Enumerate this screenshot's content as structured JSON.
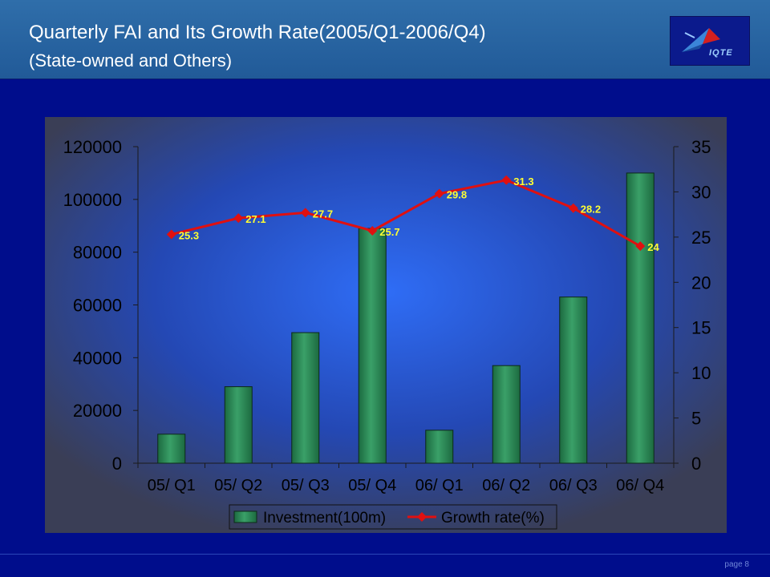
{
  "header": {
    "title": "Quarterly FAI and Its Growth Rate(2005/Q1-2006/Q4)",
    "subtitle": "(State-owned and Others)",
    "logo_text": "IQTE"
  },
  "footer": {
    "page_number": "page 8"
  },
  "colors": {
    "header_bg": "#2464a2",
    "page_bg": "#000d8c",
    "bar": "#2e8a58",
    "line": "#e01010",
    "data_label": "#ffff33"
  },
  "chart_data": {
    "type": "bar",
    "categories": [
      "05/ Q1",
      "05/ Q2",
      "05/ Q3",
      "05/ Q4",
      "06/ Q1",
      "06/ Q2",
      "06/ Q3",
      "06/ Q4"
    ],
    "series": [
      {
        "name": "Investment(100m)",
        "type": "bar",
        "axis": "left",
        "values": [
          11000,
          29000,
          49500,
          89000,
          12500,
          37000,
          63000,
          110000
        ]
      },
      {
        "name": "Growth rate(%)",
        "type": "line",
        "axis": "right",
        "values": [
          25.3,
          27.1,
          27.7,
          25.7,
          29.8,
          31.3,
          28.2,
          24
        ],
        "labels": [
          "25.3",
          "27.1",
          "27.7",
          "25.7",
          "29.8",
          "31.3",
          "28.2",
          "24"
        ]
      }
    ],
    "y_left": {
      "min": 0,
      "max": 120000,
      "ticks": [
        "0",
        "20000",
        "40000",
        "60000",
        "80000",
        "100000",
        "120000"
      ]
    },
    "y_right": {
      "min": 0,
      "max": 35,
      "ticks": [
        "0",
        "5",
        "10",
        "15",
        "20",
        "25",
        "30",
        "35"
      ]
    },
    "legend_position": "bottom-center",
    "grid": false
  }
}
